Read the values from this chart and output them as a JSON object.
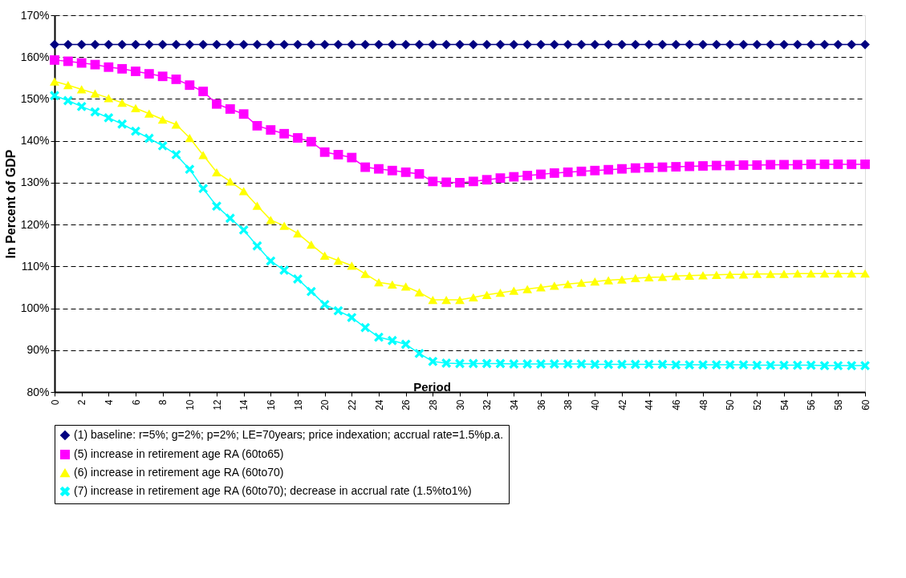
{
  "chart_data": {
    "type": "line",
    "xlabel": "Period",
    "ylabel": "In Percent of GDP",
    "x": [
      0,
      1,
      2,
      3,
      4,
      5,
      6,
      7,
      8,
      9,
      10,
      11,
      12,
      13,
      14,
      15,
      16,
      17,
      18,
      19,
      20,
      21,
      22,
      23,
      24,
      25,
      26,
      27,
      28,
      29,
      30,
      31,
      32,
      33,
      34,
      35,
      36,
      37,
      38,
      39,
      40,
      41,
      42,
      43,
      44,
      45,
      46,
      47,
      48,
      49,
      50,
      51,
      52,
      53,
      54,
      55,
      56,
      57,
      58,
      59,
      60
    ],
    "xlim": [
      0,
      60
    ],
    "xticks": [
      0,
      2,
      4,
      6,
      8,
      10,
      12,
      14,
      16,
      18,
      20,
      22,
      24,
      26,
      28,
      30,
      32,
      34,
      36,
      38,
      40,
      42,
      44,
      46,
      48,
      50,
      52,
      54,
      56,
      58,
      60
    ],
    "ylim": [
      80,
      170
    ],
    "yticks": [
      {
        "value": 80,
        "label": "80%"
      },
      {
        "value": 90,
        "label": "90%"
      },
      {
        "value": 100,
        "label": "100%"
      },
      {
        "value": 110,
        "label": "110%"
      },
      {
        "value": 120,
        "label": "120%"
      },
      {
        "value": 130,
        "label": "130%"
      },
      {
        "value": 140,
        "label": "140%"
      },
      {
        "value": 150,
        "label": "150%"
      },
      {
        "value": 160,
        "label": "160%"
      },
      {
        "value": 170,
        "label": "170%"
      }
    ],
    "grid": "y",
    "legend": "bottom",
    "line_style": "solid",
    "series": [
      {
        "name": "(1) baseline: r=5%; g=2%; p=2%; LE=70years; price indexation; accrual rate=1.5%p.a.",
        "color": "#000080",
        "marker": "diamond",
        "values": [
          163,
          163,
          163,
          163,
          163,
          163,
          163,
          163,
          163,
          163,
          163,
          163,
          163,
          163,
          163,
          163,
          163,
          163,
          163,
          163,
          163,
          163,
          163,
          163,
          163,
          163,
          163,
          163,
          163,
          163,
          163,
          163,
          163,
          163,
          163,
          163,
          163,
          163,
          163,
          163,
          163,
          163,
          163,
          163,
          163,
          163,
          163,
          163,
          163,
          163,
          163,
          163,
          163,
          163,
          163,
          163,
          163,
          163,
          163,
          163,
          163
        ]
      },
      {
        "name": "(5) increase in retirement age RA (60to65)",
        "color": "#ff00ff",
        "marker": "square",
        "values": [
          159.3,
          159,
          158.6,
          158.2,
          157.6,
          157.2,
          156.6,
          156,
          155.4,
          154.7,
          153.3,
          151.8,
          148.8,
          147.6,
          146.4,
          143.6,
          142.6,
          141.7,
          140.7,
          139.8,
          137.3,
          136.7,
          136,
          133.7,
          133.3,
          132.9,
          132.5,
          132.1,
          130.3,
          130.1,
          130,
          130.3,
          130.7,
          131.1,
          131.4,
          131.7,
          132,
          132.3,
          132.5,
          132.7,
          132.9,
          133.1,
          133.3,
          133.5,
          133.6,
          133.7,
          133.8,
          133.9,
          134,
          134.1,
          134.1,
          134.2,
          134.2,
          134.3,
          134.3,
          134.3,
          134.4,
          134.4,
          134.4,
          134.4,
          134.4
        ]
      },
      {
        "name": "(6) increase in retirement age RA (60to70)",
        "color": "#ffff00",
        "marker": "triangle",
        "values": [
          154.2,
          153.3,
          152.3,
          151.3,
          150.2,
          149.1,
          147.8,
          146.5,
          145.1,
          143.9,
          140.7,
          136.6,
          132.5,
          130.3,
          128,
          124.5,
          121.1,
          119.7,
          117.9,
          115.2,
          112.6,
          111.4,
          110.2,
          108.2,
          106.2,
          105.7,
          105.2,
          103.8,
          102,
          102,
          102,
          102.6,
          103.2,
          103.7,
          104.2,
          104.6,
          105,
          105.4,
          105.8,
          106.1,
          106.4,
          106.7,
          106.9,
          107.2,
          107.4,
          107.5,
          107.7,
          107.8,
          107.9,
          108,
          108.1,
          108.1,
          108.2,
          108.2,
          108.2,
          108.3,
          108.3,
          108.3,
          108.3,
          108.3,
          108.3
        ]
      },
      {
        "name": "(7) increase in retirement age RA (60to70); decrease in accrual rate (1.5%to1%)",
        "color": "#00ffff",
        "marker": "cross",
        "values": [
          150.8,
          149.6,
          148.2,
          146.9,
          145.5,
          144,
          142.3,
          140.6,
          138.8,
          136.7,
          133.2,
          128.6,
          124.4,
          121.5,
          118.7,
          114.9,
          111.3,
          109.1,
          107,
          104,
          100.9,
          99.4,
          97.8,
          95.4,
          93.1,
          92.3,
          91.4,
          89.2,
          87.3,
          86.9,
          86.8,
          86.8,
          86.8,
          86.8,
          86.7,
          86.7,
          86.7,
          86.7,
          86.7,
          86.7,
          86.6,
          86.6,
          86.6,
          86.6,
          86.6,
          86.6,
          86.5,
          86.5,
          86.5,
          86.5,
          86.5,
          86.5,
          86.4,
          86.4,
          86.4,
          86.4,
          86.4,
          86.3,
          86.3,
          86.3,
          86.3
        ]
      }
    ]
  }
}
